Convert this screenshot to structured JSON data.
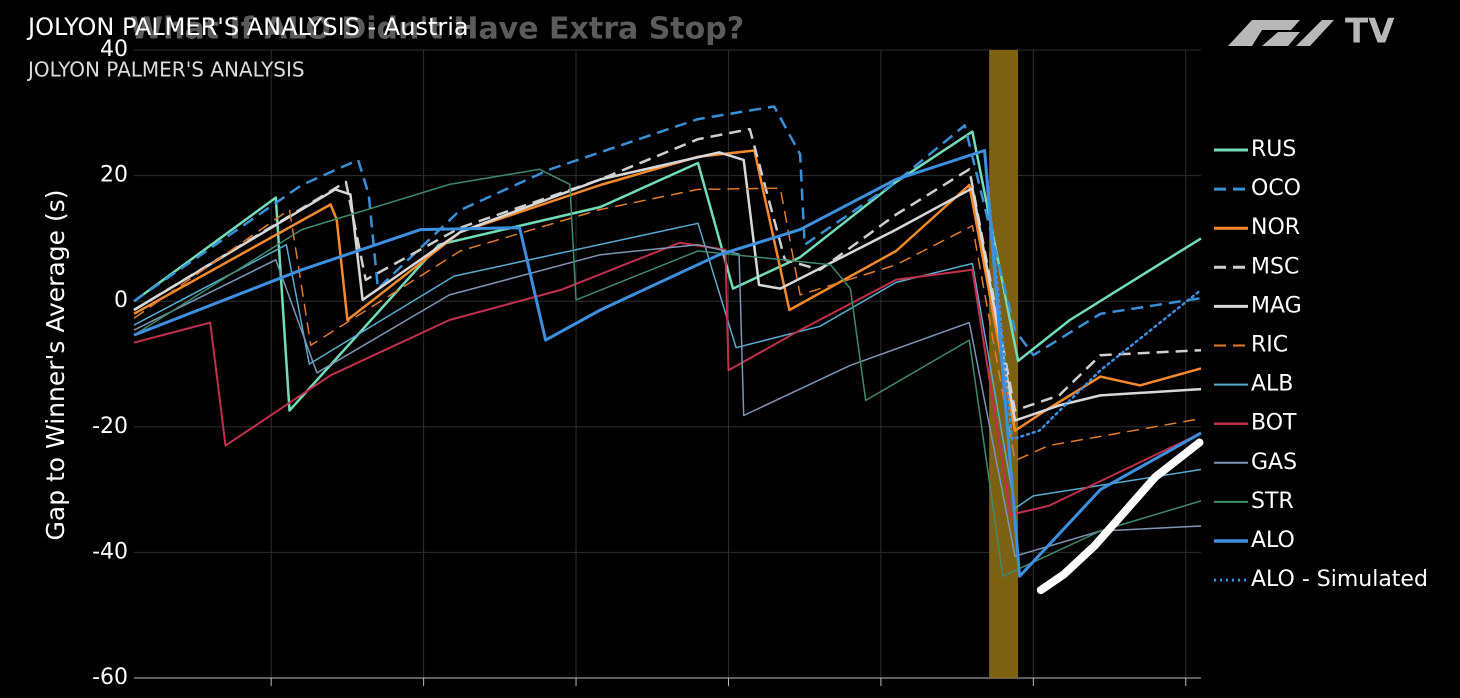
{
  "chart_data": {
    "type": "line",
    "title": "JOLYON PALMER'S ANALYSIS - Austria",
    "overlay_title": "What If ALO Didn't Have Extra Stop?",
    "subtitle": "JOLYON PALMER'S ANALYSIS",
    "logo_text": "TV",
    "ylabel": "Gap to Winner's Average (s)",
    "xlim": [
      1,
      71
    ],
    "xticks": [
      10,
      20,
      30,
      40,
      50,
      60,
      70
    ],
    "ylim": [
      -60,
      40
    ],
    "yticks": [
      40,
      20,
      0,
      -20,
      -40,
      -60
    ],
    "grid": true,
    "legend": "right",
    "shaded_region": {
      "xlim": [
        57.1,
        59.0
      ],
      "color": "#8a6c14"
    },
    "highlight_line": {
      "x": [
        60.5,
        62,
        64,
        66,
        68,
        70.9
      ],
      "values": [
        -46,
        -43.5,
        -39,
        -33.5,
        -28,
        -22.5
      ],
      "color": "#ffffff"
    },
    "series": [
      {
        "name": "RUS",
        "color": "#72dcb8",
        "style": "solid",
        "linewidth": 2.5,
        "x": [
          1,
          10.3,
          11.2,
          21,
          31.6,
          38,
          40.3,
          44.7,
          51,
          56,
          59,
          62.4,
          71
        ],
        "values": [
          0,
          16.5,
          -17.4,
          9,
          15,
          22,
          2,
          7,
          19,
          27,
          -9.5,
          -3,
          10
        ]
      },
      {
        "name": "OCO",
        "color": "#3a8fd6",
        "style": "dashed",
        "linewidth": 2.5,
        "x": [
          1,
          12,
          15.7,
          16.4,
          17,
          22.4,
          28.3,
          38,
          43,
          44.7,
          45,
          51,
          55.5,
          58.8,
          60,
          64.4,
          71
        ],
        "values": [
          0,
          18.5,
          22.5,
          17,
          2,
          14.5,
          21,
          29,
          31,
          23.4,
          9,
          19,
          28,
          -4.6,
          -8.6,
          -2,
          0.5
        ]
      },
      {
        "name": "NOR",
        "color": "#f58a2c",
        "style": "solid",
        "linewidth": 2.5,
        "x": [
          1,
          13.9,
          14.3,
          15,
          22.4,
          31.6,
          38,
          41.7,
          44,
          51,
          55.8,
          58.8,
          60.8,
          64.4,
          67,
          71
        ],
        "values": [
          -2,
          15.4,
          13,
          -3,
          11,
          18.5,
          23,
          24,
          -1.4,
          8,
          18.5,
          -20.6,
          -17.4,
          -12,
          -13.4,
          -10.7
        ]
      },
      {
        "name": "MSC",
        "color": "#cfcfcf",
        "style": "dashed",
        "linewidth": 2.5,
        "x": [
          1,
          14.9,
          16.2,
          22.4,
          31.6,
          38,
          41.4,
          43.7,
          46,
          51,
          55.8,
          58.8,
          61.7,
          64.4,
          71
        ],
        "values": [
          -1.4,
          19,
          3.4,
          11.7,
          19.4,
          25.8,
          27.4,
          6.6,
          5,
          13.8,
          21,
          -17.4,
          -15,
          -8.6,
          -7.8
        ]
      },
      {
        "name": "MAG",
        "color": "#d8d8d8",
        "style": "solid",
        "linewidth": 2.5,
        "x": [
          1,
          14.2,
          15.2,
          16,
          22.4,
          31.6,
          39.4,
          41,
          42,
          43.4,
          51,
          56,
          58.8,
          61.7,
          64.4,
          71
        ],
        "values": [
          -1.4,
          17.8,
          17,
          0.2,
          11,
          19.4,
          23.7,
          22.5,
          2.6,
          2,
          11.4,
          18,
          -19,
          -16.6,
          -15,
          -14
        ]
      },
      {
        "name": "RIC",
        "color": "#e07b2a",
        "style": "dashed",
        "linewidth": 1.5,
        "x": [
          1,
          11.2,
          12.6,
          22.4,
          31.6,
          38,
          43.4,
          44.7,
          51,
          56,
          58.8,
          61,
          71
        ],
        "values": [
          -2.7,
          14.6,
          -7,
          8,
          14.6,
          17.8,
          18,
          1,
          5.8,
          12,
          -25.4,
          -23,
          -18.7
        ]
      },
      {
        "name": "ALB",
        "color": "#5aaad0",
        "style": "solid",
        "linewidth": 1.5,
        "x": [
          1,
          11,
          12.5,
          22,
          38,
          40.5,
          46,
          51,
          56,
          58.8,
          60,
          71
        ],
        "values": [
          -3.8,
          9,
          -10,
          4,
          12.4,
          -7.4,
          -4,
          3,
          6,
          -33,
          -31,
          -26.8
        ]
      },
      {
        "name": "BOT",
        "color": "#c0304a",
        "style": "solid",
        "linewidth": 2,
        "x": [
          1,
          6,
          7,
          13.9,
          21.7,
          29,
          36.8,
          39.8,
          40,
          44.7,
          51,
          56,
          58.5,
          61,
          71
        ],
        "values": [
          -6.6,
          -3.4,
          -23,
          -11.8,
          -3,
          1.8,
          9.3,
          8.2,
          -11,
          -4.6,
          3.4,
          5,
          -34,
          -32.6,
          -21
        ]
      },
      {
        "name": "GAS",
        "color": "#7c95b5",
        "style": "solid",
        "linewidth": 1.5,
        "x": [
          1,
          10.3,
          13,
          21.7,
          31.6,
          38,
          40.7,
          41,
          48,
          55.8,
          58.8,
          64.4,
          71
        ],
        "values": [
          -4.6,
          6.6,
          -11.4,
          1,
          7.4,
          9,
          7.5,
          -18.2,
          -10.2,
          -3.4,
          -40.6,
          -36.6,
          -35.8
        ]
      },
      {
        "name": "STR",
        "color": "#3f8a6a",
        "style": "solid",
        "linewidth": 1.5,
        "x": [
          1,
          12,
          21.7,
          27.6,
          29.6,
          30,
          38,
          46.7,
          48,
          49,
          55.8,
          58,
          64.4,
          71
        ],
        "values": [
          -5.4,
          11.4,
          18.6,
          21,
          18.6,
          0.2,
          8,
          5.8,
          2,
          -15.8,
          -6.2,
          -43.8,
          -36.6,
          -31.8
        ]
      },
      {
        "name": "ALO",
        "color": "#3d8fe0",
        "style": "solid",
        "linewidth": 3,
        "x": [
          1,
          12,
          19.8,
          26.3,
          28,
          31.6,
          39.4,
          44.7,
          51,
          56.8,
          59.1,
          64.4,
          71
        ],
        "values": [
          -5.4,
          5,
          11.4,
          11.7,
          -6.2,
          -1.4,
          7.4,
          11.4,
          19.4,
          24,
          -43.8,
          -30,
          -21
        ]
      },
      {
        "name": "ALO - Simulated",
        "color": "#3d8fe0",
        "style": "dotted",
        "linewidth": 2.5,
        "x": [
          56.8,
          58.6,
          60.4,
          64.4,
          71
        ],
        "values": [
          24,
          -22,
          -20.6,
          -11,
          1.8
        ]
      }
    ]
  }
}
